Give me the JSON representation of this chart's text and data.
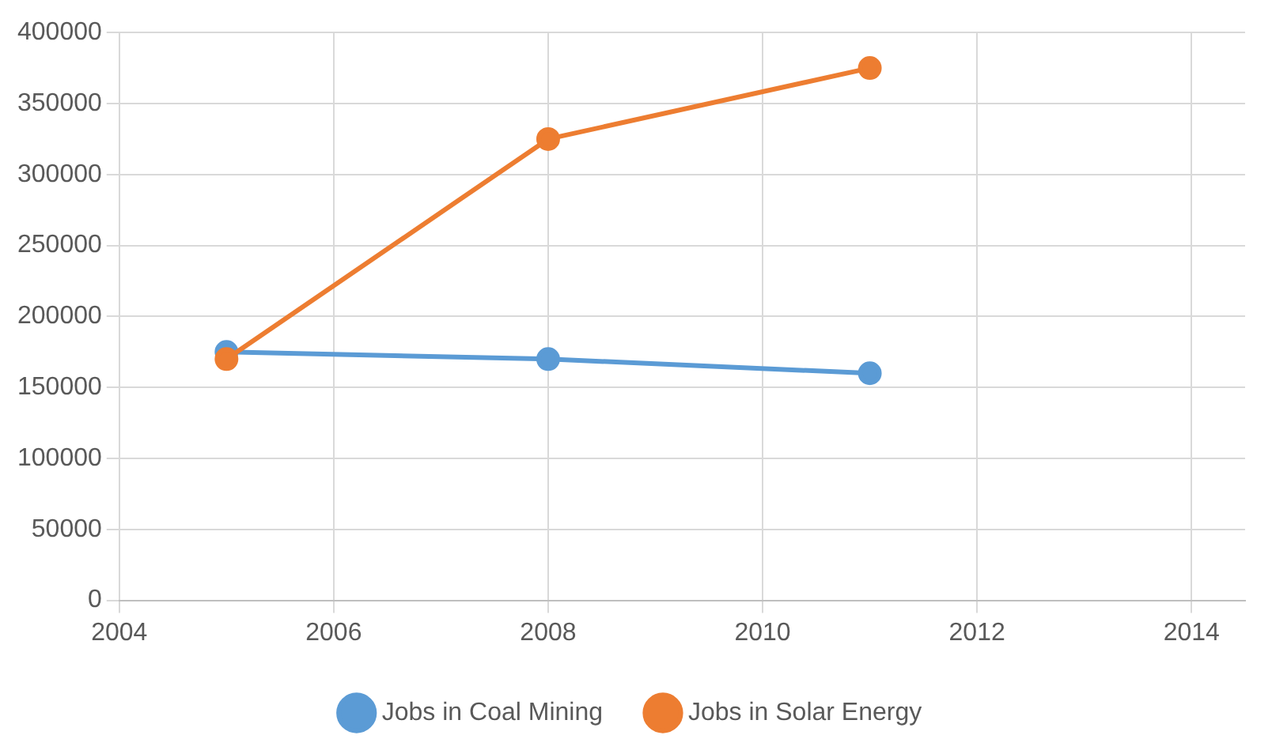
{
  "chart_data": {
    "type": "line",
    "x": [
      2005,
      2008,
      2011
    ],
    "series": [
      {
        "name": "Jobs in Coal Mining",
        "color": "#5b9bd5",
        "values": [
          175000,
          170000,
          160000
        ]
      },
      {
        "name": "Jobs in Solar Energy",
        "color": "#ed7d31",
        "values": [
          170000,
          325000,
          375000
        ]
      }
    ],
    "xlim": [
      2004,
      2014.5
    ],
    "xticks": [
      2004,
      2006,
      2008,
      2010,
      2012,
      2014
    ],
    "ylim": [
      0,
      400000
    ],
    "yticks": [
      0,
      50000,
      100000,
      150000,
      200000,
      250000,
      300000,
      350000,
      400000
    ],
    "grid": true,
    "legend": "bottom",
    "marker": "circle",
    "line_style": "solid"
  }
}
